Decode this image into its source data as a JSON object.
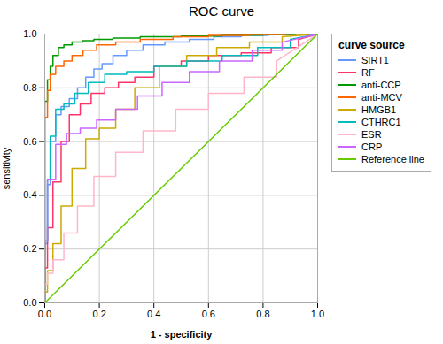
{
  "chart_data": {
    "type": "line",
    "title": "ROC curve",
    "xlabel": "1 - specificity",
    "ylabel": "sensitivity",
    "legend_title": "curve source",
    "legend": "right",
    "grid": true,
    "xlim": [
      0.0,
      1.0
    ],
    "ylim": [
      0.0,
      1.0
    ],
    "xticks": [
      {
        "value": 0,
        "label": "0.0"
      },
      0.2,
      0.4,
      0.6,
      0.8,
      {
        "value": 1,
        "label": "1.0"
      }
    ],
    "yticks": [
      {
        "value": 0,
        "label": "0.0"
      },
      0.2,
      0.4,
      0.6,
      0.8,
      {
        "value": 1,
        "label": "1.0"
      }
    ],
    "series": [
      {
        "name": "SIRT1",
        "color": "#6699FF",
        "x": [
          0,
          0,
          0.01,
          0.01,
          0.02,
          0.02,
          0.04,
          0.04,
          0.06,
          0.06,
          0.09,
          0.09,
          0.12,
          0.12,
          0.15,
          0.15,
          0.18,
          0.18,
          0.21,
          0.21,
          0.25,
          0.25,
          0.3,
          0.3,
          0.36,
          0.36,
          0.44,
          0.44,
          0.53,
          0.53,
          0.62,
          0.62,
          0.72,
          0.72,
          0.82,
          0.82,
          0.9,
          0.9,
          1.0
        ],
        "values": [
          0,
          0.22,
          0.22,
          0.44,
          0.44,
          0.6,
          0.6,
          0.7,
          0.7,
          0.73,
          0.73,
          0.76,
          0.76,
          0.8,
          0.8,
          0.84,
          0.84,
          0.87,
          0.87,
          0.89,
          0.89,
          0.92,
          0.92,
          0.94,
          0.94,
          0.96,
          0.96,
          0.97,
          0.97,
          0.98,
          0.98,
          0.99,
          0.99,
          0.995,
          0.995,
          0.998,
          0.998,
          1.0,
          1.0
        ]
      },
      {
        "name": "RF",
        "color": "#FF3366",
        "x": [
          0,
          0,
          0.01,
          0.01,
          0.03,
          0.03,
          0.06,
          0.06,
          0.09,
          0.09,
          0.13,
          0.13,
          0.17,
          0.17,
          0.22,
          0.22,
          0.27,
          0.27,
          0.33,
          0.33,
          0.4,
          0.4,
          0.5,
          0.5,
          0.6,
          0.6,
          0.72,
          0.72,
          0.83,
          0.83,
          0.93,
          0.93,
          1.0
        ],
        "values": [
          0,
          0.13,
          0.13,
          0.28,
          0.28,
          0.45,
          0.45,
          0.6,
          0.6,
          0.7,
          0.7,
          0.74,
          0.74,
          0.78,
          0.78,
          0.8,
          0.8,
          0.82,
          0.82,
          0.84,
          0.84,
          0.88,
          0.88,
          0.9,
          0.9,
          0.92,
          0.92,
          0.93,
          0.93,
          0.95,
          0.95,
          0.98,
          1.0
        ]
      },
      {
        "name": "anti-CCP",
        "color": "#009900",
        "x": [
          0,
          0,
          0.01,
          0.01,
          0.02,
          0.02,
          0.03,
          0.03,
          0.05,
          0.05,
          0.07,
          0.07,
          0.1,
          0.1,
          0.14,
          0.14,
          0.18,
          0.18,
          0.25,
          0.25,
          0.35,
          0.35,
          0.5,
          0.5,
          0.65,
          0.65,
          0.8,
          0.8,
          0.92,
          0.92,
          1.0
        ],
        "values": [
          0,
          0.75,
          0.75,
          0.83,
          0.83,
          0.88,
          0.88,
          0.92,
          0.92,
          0.95,
          0.95,
          0.96,
          0.96,
          0.97,
          0.97,
          0.975,
          0.975,
          0.98,
          0.98,
          0.985,
          0.985,
          0.99,
          0.99,
          0.993,
          0.993,
          0.996,
          0.996,
          0.998,
          0.998,
          1.0,
          1.0
        ]
      },
      {
        "name": "anti-MCV",
        "color": "#FF6600",
        "x": [
          0,
          0,
          0.01,
          0.01,
          0.02,
          0.02,
          0.04,
          0.04,
          0.07,
          0.07,
          0.1,
          0.1,
          0.14,
          0.14,
          0.19,
          0.19,
          0.26,
          0.26,
          0.35,
          0.35,
          0.47,
          0.47,
          0.6,
          0.6,
          0.75,
          0.75,
          0.88,
          0.88,
          1.0
        ],
        "values": [
          0,
          0.69,
          0.69,
          0.79,
          0.79,
          0.85,
          0.85,
          0.88,
          0.88,
          0.9,
          0.9,
          0.92,
          0.92,
          0.94,
          0.94,
          0.96,
          0.96,
          0.97,
          0.97,
          0.98,
          0.98,
          0.99,
          0.99,
          0.995,
          0.995,
          0.998,
          0.998,
          1.0,
          1.0
        ]
      },
      {
        "name": "HMGB1",
        "color": "#CCAA00",
        "x": [
          0,
          0,
          0.01,
          0.01,
          0.03,
          0.03,
          0.06,
          0.06,
          0.1,
          0.1,
          0.15,
          0.15,
          0.2,
          0.2,
          0.26,
          0.26,
          0.33,
          0.33,
          0.42,
          0.42,
          0.52,
          0.52,
          0.63,
          0.63,
          0.75,
          0.75,
          0.87,
          0.87,
          1.0
        ],
        "values": [
          0,
          0.04,
          0.04,
          0.12,
          0.12,
          0.22,
          0.22,
          0.36,
          0.36,
          0.5,
          0.5,
          0.61,
          0.61,
          0.65,
          0.65,
          0.72,
          0.72,
          0.8,
          0.8,
          0.88,
          0.88,
          0.92,
          0.92,
          0.95,
          0.95,
          0.97,
          0.97,
          0.99,
          1.0
        ]
      },
      {
        "name": "CTHRC1",
        "color": "#00BBBB",
        "x": [
          0,
          0,
          0.01,
          0.01,
          0.02,
          0.02,
          0.04,
          0.04,
          0.07,
          0.07,
          0.11,
          0.11,
          0.16,
          0.16,
          0.22,
          0.22,
          0.3,
          0.3,
          0.4,
          0.4,
          0.52,
          0.52,
          0.65,
          0.65,
          0.78,
          0.78,
          0.9,
          0.9,
          1.0
        ],
        "values": [
          0,
          0.23,
          0.23,
          0.46,
          0.46,
          0.62,
          0.62,
          0.72,
          0.72,
          0.74,
          0.74,
          0.78,
          0.78,
          0.82,
          0.82,
          0.85,
          0.85,
          0.86,
          0.86,
          0.88,
          0.88,
          0.9,
          0.9,
          0.92,
          0.92,
          0.95,
          0.95,
          0.98,
          1.0
        ]
      },
      {
        "name": "ESR",
        "color": "#FFB6C8",
        "x": [
          0,
          0,
          0.01,
          0.01,
          0.03,
          0.03,
          0.07,
          0.07,
          0.12,
          0.12,
          0.18,
          0.18,
          0.26,
          0.26,
          0.36,
          0.36,
          0.48,
          0.48,
          0.6,
          0.6,
          0.73,
          0.73,
          0.85,
          0.85,
          1.0
        ],
        "values": [
          0,
          0.07,
          0.07,
          0.11,
          0.11,
          0.16,
          0.16,
          0.26,
          0.26,
          0.36,
          0.36,
          0.47,
          0.47,
          0.56,
          0.56,
          0.64,
          0.64,
          0.72,
          0.72,
          0.78,
          0.78,
          0.84,
          0.84,
          0.9,
          1.0
        ]
      },
      {
        "name": "CRP",
        "color": "#CC66FF",
        "x": [
          0,
          0,
          0.01,
          0.01,
          0.04,
          0.04,
          0.08,
          0.08,
          0.13,
          0.13,
          0.19,
          0.19,
          0.26,
          0.26,
          0.34,
          0.34,
          0.43,
          0.43,
          0.53,
          0.53,
          0.64,
          0.64,
          0.76,
          0.76,
          0.87,
          0.87,
          1.0
        ],
        "values": [
          0,
          0.23,
          0.23,
          0.46,
          0.46,
          0.59,
          0.59,
          0.63,
          0.63,
          0.65,
          0.65,
          0.68,
          0.68,
          0.72,
          0.72,
          0.77,
          0.77,
          0.82,
          0.82,
          0.86,
          0.86,
          0.9,
          0.9,
          0.94,
          0.94,
          0.97,
          1.0
        ]
      },
      {
        "name": "Reference line",
        "color": "#66CC00",
        "x": [
          0,
          1
        ],
        "values": [
          0,
          1
        ]
      }
    ]
  }
}
